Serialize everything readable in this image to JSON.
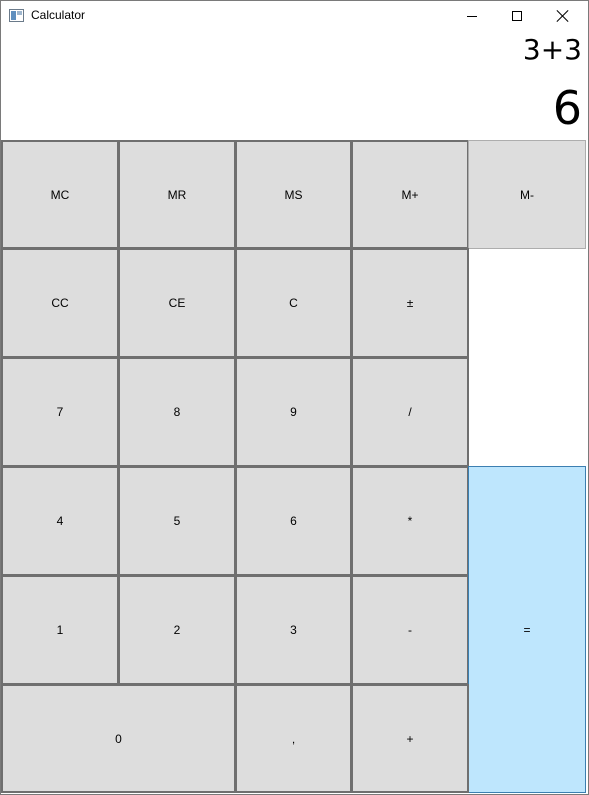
{
  "window": {
    "title": "Calculator",
    "controls": [
      "minimize",
      "maximize",
      "close"
    ]
  },
  "display": {
    "expression": "3+3",
    "result": "6"
  },
  "keys": {
    "mc": "MC",
    "mr": "MR",
    "ms": "MS",
    "mplus": "M+",
    "mminus": "M-",
    "cc": "CC",
    "ce": "CE",
    "c": "C",
    "plusminus": "±",
    "seven": "7",
    "eight": "8",
    "nine": "9",
    "divide": "/",
    "four": "4",
    "five": "5",
    "six": "6",
    "multiply": "*",
    "one": "1",
    "two": "2",
    "three": "3",
    "minus": "-",
    "equals": "=",
    "zero": "0",
    "decimal": ",",
    "plus": "+"
  },
  "colors": {
    "key_background": "#dddddd",
    "key_border": "#6f6f6f",
    "equals_background": "#bee6fd",
    "equals_border": "#3c7fb1"
  }
}
